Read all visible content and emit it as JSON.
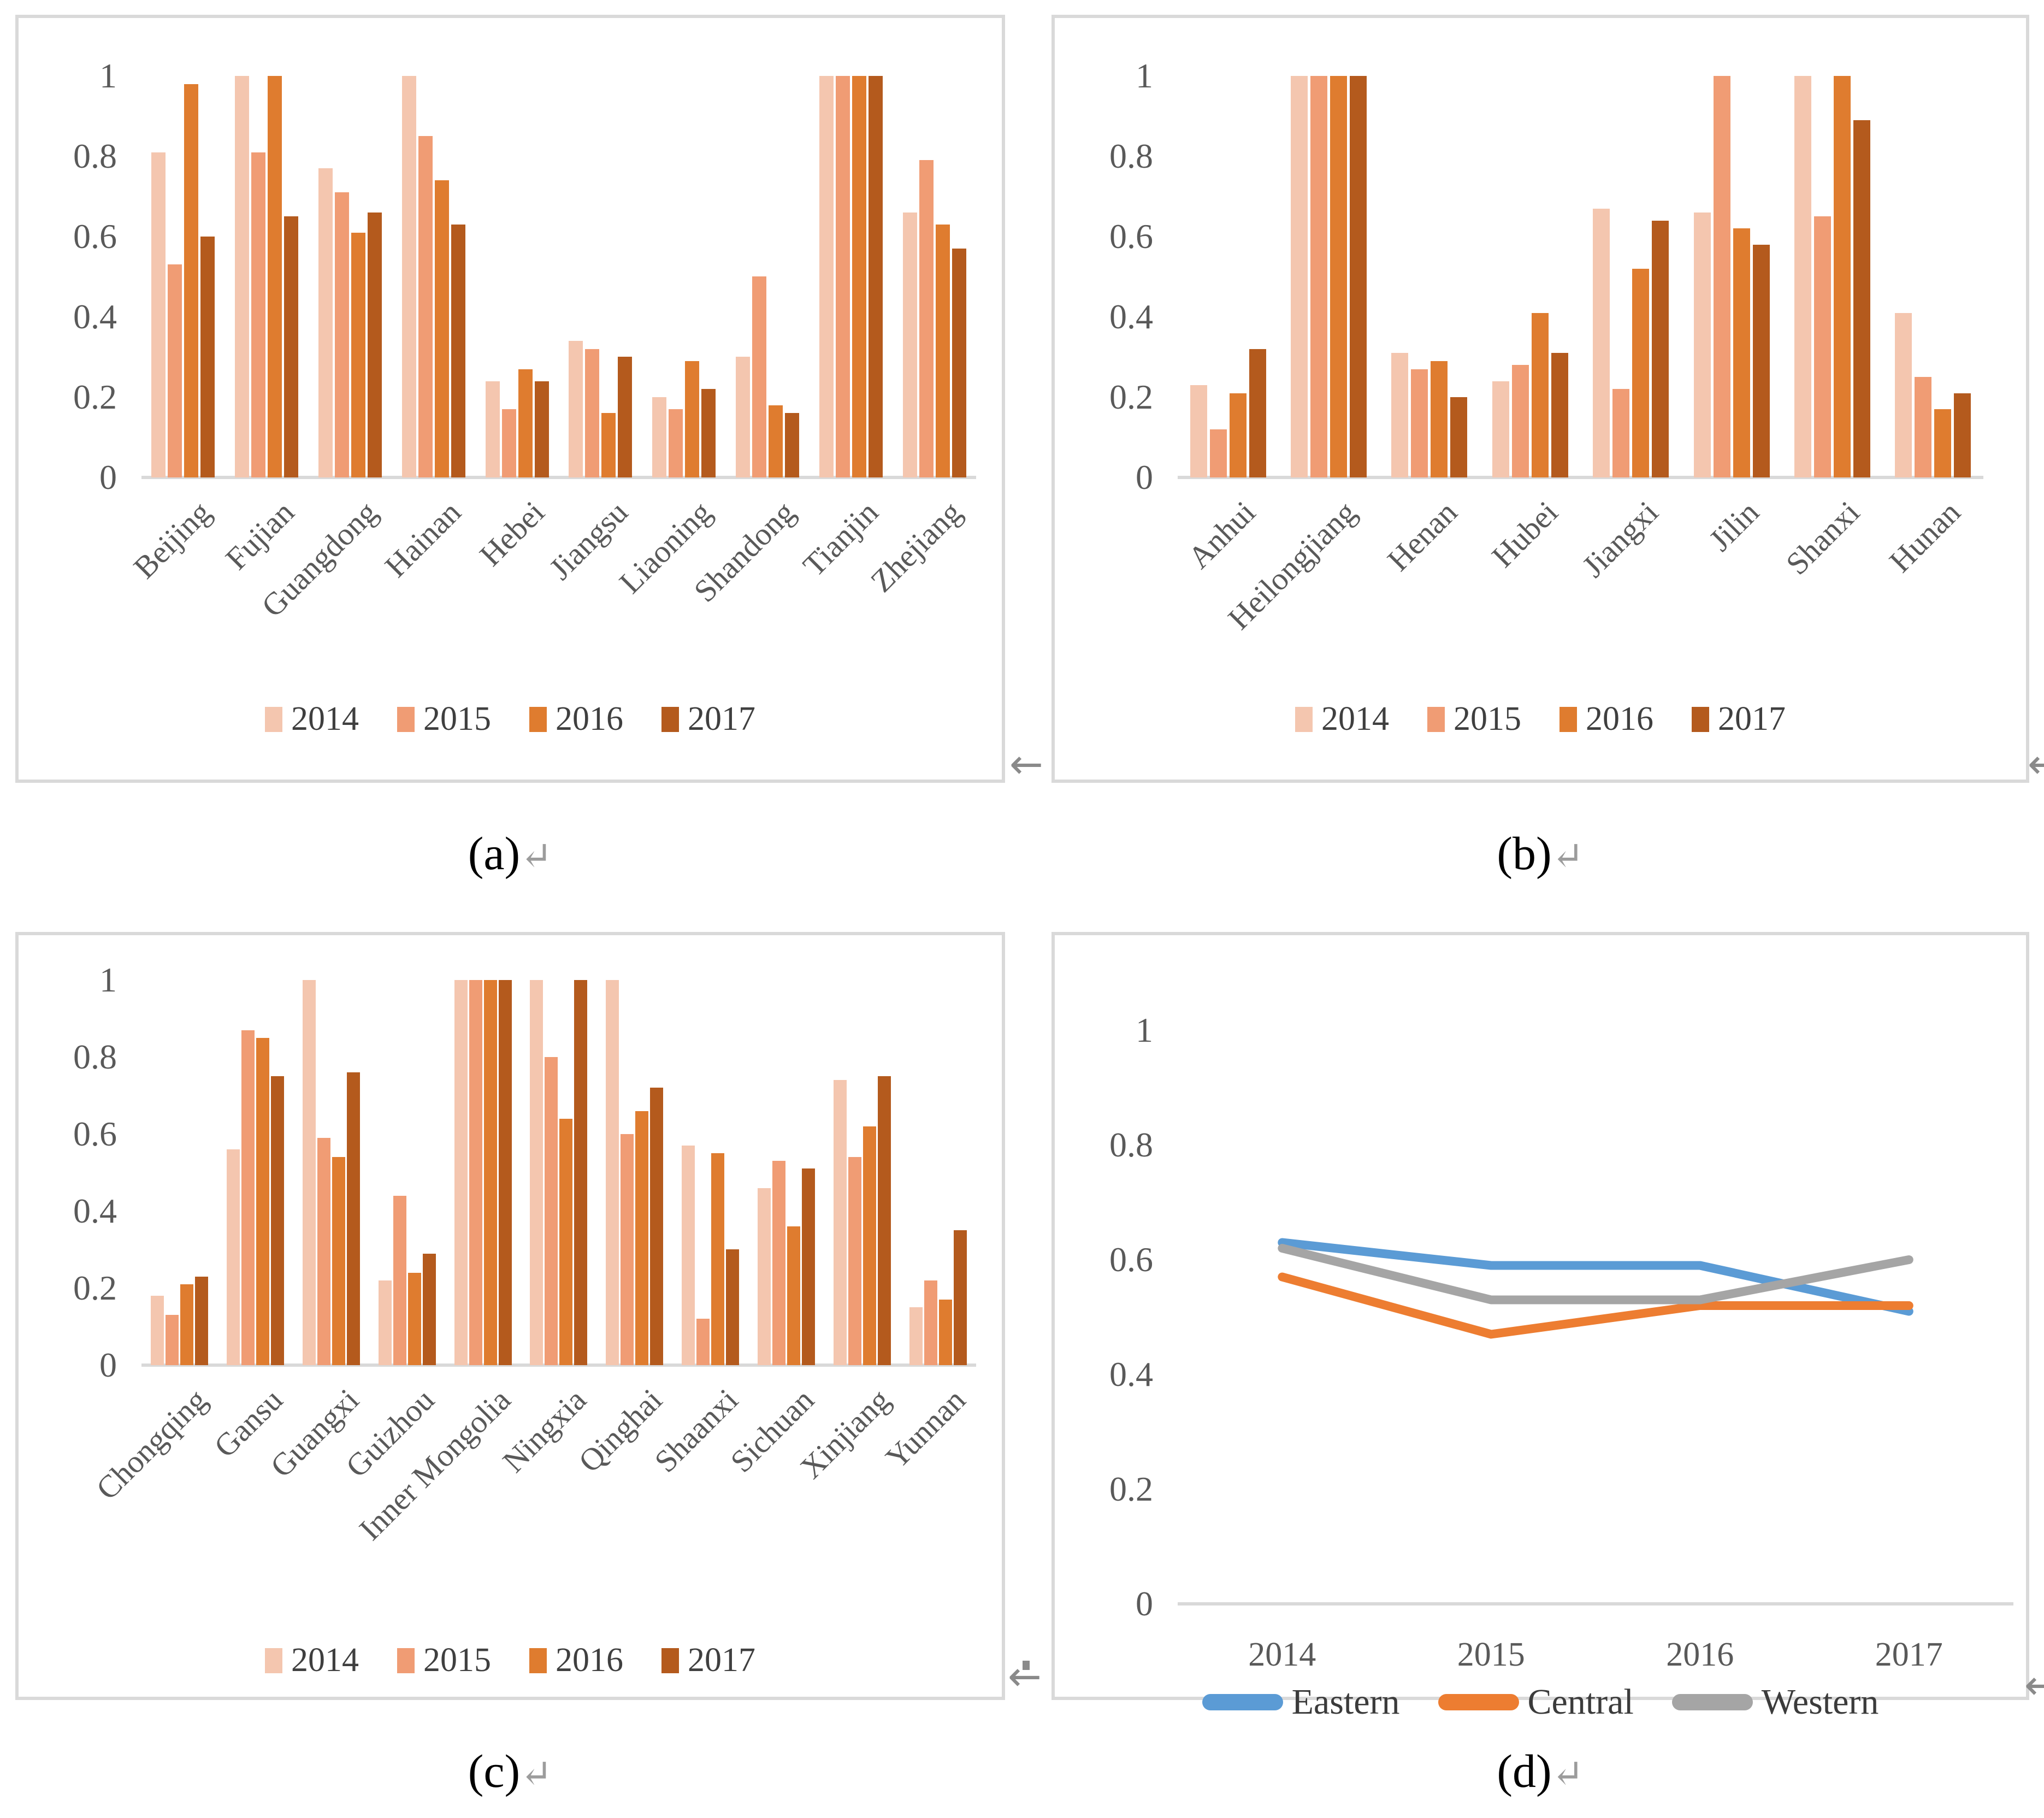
{
  "figure": {
    "captions": [
      {
        "label": "(a)",
        "mark": "↵"
      },
      {
        "label": "(b)",
        "mark": "↵"
      },
      {
        "label": "(c)",
        "mark": "↵"
      },
      {
        "label": "(d)",
        "mark": "↵"
      }
    ],
    "stray_mark": "←"
  },
  "palette": {
    "bar_2014": "#F4C6AF",
    "bar_2015": "#F09C74",
    "bar_2016": "#DF7C2F",
    "bar_2017": "#B45A1D",
    "line_eastern": "#5B9BD5",
    "line_central": "#ED7D31",
    "line_western": "#A5A5A5",
    "axis_line": "#D9D9D9",
    "panel_border": "#D9D9D9",
    "tick_text": "#595959"
  },
  "chart_data": [
    {
      "id": "a",
      "type": "bar",
      "title": "",
      "xlabel": "",
      "ylabel": "",
      "ylim": [
        0,
        1
      ],
      "yticks": [
        1,
        0.8,
        0.6,
        0.4,
        0.2,
        0
      ],
      "grid": false,
      "legend_position": "bottom",
      "categories": [
        "Beijing",
        "Fujian",
        "Guangdong",
        "Hainan",
        "Hebei",
        "Jiangsu",
        "Liaoning",
        "Shandong",
        "Tianjin",
        "Zhejiang"
      ],
      "series": [
        {
          "name": "2014",
          "color": "#F4C6AF",
          "values": [
            0.81,
            1.0,
            0.77,
            1.0,
            0.24,
            0.34,
            0.2,
            0.3,
            1.0,
            0.66
          ]
        },
        {
          "name": "2015",
          "color": "#F09C74",
          "values": [
            0.53,
            0.81,
            0.71,
            0.85,
            0.17,
            0.32,
            0.17,
            0.5,
            1.0,
            0.79
          ]
        },
        {
          "name": "2016",
          "color": "#DF7C2F",
          "values": [
            0.98,
            1.0,
            0.61,
            0.74,
            0.27,
            0.16,
            0.29,
            0.18,
            1.0,
            0.63
          ]
        },
        {
          "name": "2017",
          "color": "#B45A1D",
          "values": [
            0.6,
            0.65,
            0.66,
            0.63,
            0.24,
            0.3,
            0.22,
            0.16,
            1.0,
            0.57
          ]
        }
      ]
    },
    {
      "id": "b",
      "type": "bar",
      "title": "",
      "xlabel": "",
      "ylabel": "",
      "ylim": [
        0,
        1
      ],
      "yticks": [
        1,
        0.8,
        0.6,
        0.4,
        0.2,
        0
      ],
      "grid": false,
      "legend_position": "bottom",
      "categories": [
        "Anhui",
        "Heilongjiang",
        "Henan",
        "Hubei",
        "Jiangxi",
        "Jilin",
        "Shanxi",
        "Hunan"
      ],
      "series": [
        {
          "name": "2014",
          "color": "#F4C6AF",
          "values": [
            0.23,
            1.0,
            0.31,
            0.24,
            0.67,
            0.66,
            1.0,
            0.41
          ]
        },
        {
          "name": "2015",
          "color": "#F09C74",
          "values": [
            0.12,
            1.0,
            0.27,
            0.28,
            0.22,
            1.0,
            0.65,
            0.25
          ]
        },
        {
          "name": "2016",
          "color": "#DF7C2F",
          "values": [
            0.21,
            1.0,
            0.29,
            0.41,
            0.52,
            0.62,
            1.0,
            0.17
          ]
        },
        {
          "name": "2017",
          "color": "#B45A1D",
          "values": [
            0.32,
            1.0,
            0.2,
            0.31,
            0.64,
            0.58,
            0.89,
            0.21
          ]
        }
      ]
    },
    {
      "id": "c",
      "type": "bar",
      "title": "",
      "xlabel": "",
      "ylabel": "",
      "ylim": [
        0,
        1
      ],
      "yticks": [
        1,
        0.8,
        0.6,
        0.4,
        0.2,
        0
      ],
      "grid": false,
      "legend_position": "bottom",
      "categories": [
        "Chongqing",
        "Gansu",
        "Guangxi",
        "Guizhou",
        "Inner Mongolia",
        "Ningxia",
        "Qinghai",
        "Shaanxi",
        "Sichuan",
        "Xinjiang",
        "Yunnan"
      ],
      "series": [
        {
          "name": "2014",
          "color": "#F4C6AF",
          "values": [
            0.18,
            0.56,
            1.0,
            0.22,
            1.0,
            1.0,
            1.0,
            0.57,
            0.46,
            0.74,
            0.15
          ]
        },
        {
          "name": "2015",
          "color": "#F09C74",
          "values": [
            0.13,
            0.87,
            0.59,
            0.44,
            1.0,
            0.8,
            0.6,
            0.12,
            0.53,
            0.54,
            0.22
          ]
        },
        {
          "name": "2016",
          "color": "#DF7C2F",
          "values": [
            0.21,
            0.85,
            0.54,
            0.24,
            1.0,
            0.64,
            0.66,
            0.55,
            0.36,
            0.62,
            0.17
          ]
        },
        {
          "name": "2017",
          "color": "#B45A1D",
          "values": [
            0.23,
            0.75,
            0.76,
            0.29,
            1.0,
            1.0,
            0.72,
            0.3,
            0.51,
            0.75,
            0.35
          ]
        }
      ]
    },
    {
      "id": "d",
      "type": "line",
      "title": "",
      "xlabel": "",
      "ylabel": "",
      "ylim": [
        0,
        1
      ],
      "yticks": [
        1,
        0.8,
        0.6,
        0.4,
        0.2,
        0
      ],
      "grid": false,
      "legend_position": "bottom",
      "categories": [
        "2014",
        "2015",
        "2016",
        "2017"
      ],
      "series": [
        {
          "name": "Eastern",
          "color": "#5B9BD5",
          "values": [
            0.63,
            0.59,
            0.59,
            0.51
          ]
        },
        {
          "name": "Central",
          "color": "#ED7D31",
          "values": [
            0.57,
            0.47,
            0.52,
            0.52
          ]
        },
        {
          "name": "Western",
          "color": "#A5A5A5",
          "values": [
            0.62,
            0.53,
            0.53,
            0.6
          ]
        }
      ]
    }
  ]
}
